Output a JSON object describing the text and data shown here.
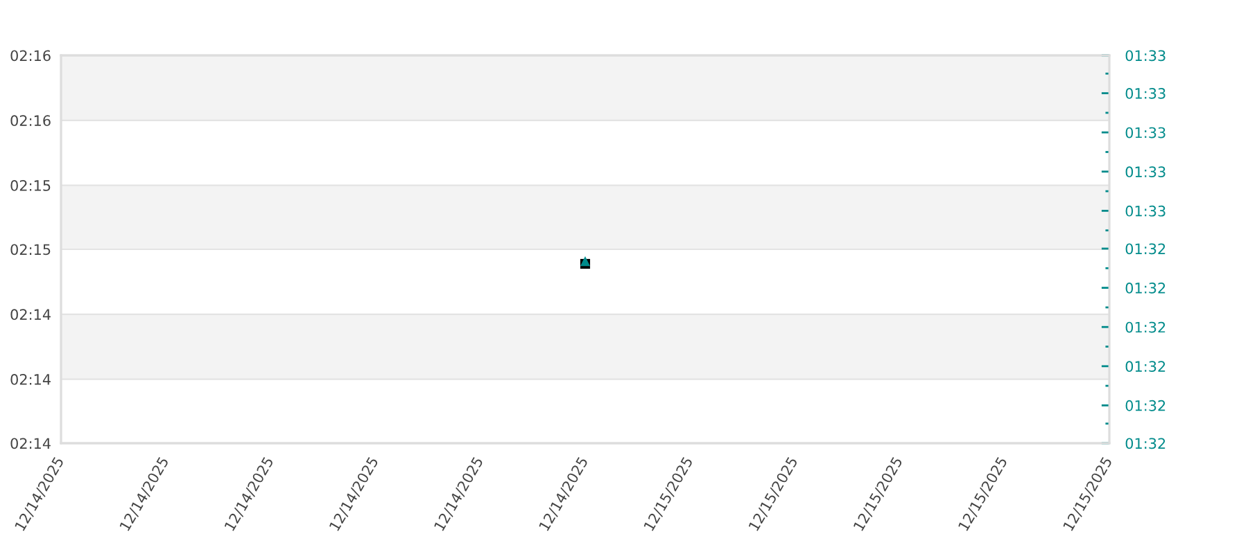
{
  "chart_data": {
    "type": "scatter",
    "x": [
      "2025-12-14T22:00"
    ],
    "series": [
      {
        "color": "#000000",
        "values": [
          2.2452
        ],
        "marker": "square"
      },
      {
        "color": "#008b8b",
        "values": [
          1.5397
        ],
        "marker": "triangle",
        "axis": "y2"
      }
    ],
    "xlim": [
      "2025-12-14T12:00",
      "2025-12-15T08:00"
    ],
    "xticks": [
      {
        "value": "2025-12-14T12:00",
        "label": "12/14/2025"
      },
      {
        "value": "2025-12-14T14:00",
        "label": "12/14/2025"
      },
      {
        "value": "2025-12-14T16:00",
        "label": "12/14/2025"
      },
      {
        "value": "2025-12-14T18:00",
        "label": "12/14/2025"
      },
      {
        "value": "2025-12-14T20:00",
        "label": "12/14/2025"
      },
      {
        "value": "2025-12-14T22:00",
        "label": "12/14/2025"
      },
      {
        "value": "2025-12-15T00:00",
        "label": "12/15/2025"
      },
      {
        "value": "2025-12-15T02:00",
        "label": "12/15/2025"
      },
      {
        "value": "2025-12-15T04:00",
        "label": "12/15/2025"
      },
      {
        "value": "2025-12-15T06:00",
        "label": "12/15/2025"
      },
      {
        "value": "2025-12-15T08:00",
        "label": "12/15/2025"
      }
    ],
    "ylim": [
      2.2267,
      2.2667
    ],
    "yticks": [
      {
        "value": 2.2267,
        "label": "02:14"
      },
      {
        "value": 2.2333,
        "label": "02:14"
      },
      {
        "value": 2.24,
        "label": "02:14"
      },
      {
        "value": 2.2467,
        "label": "02:15"
      },
      {
        "value": 2.2533,
        "label": "02:15"
      },
      {
        "value": 2.26,
        "label": "02:16"
      },
      {
        "value": 2.2667,
        "label": "02:16"
      }
    ],
    "y2lim": [
      1.5267,
      1.5544
    ],
    "y2ticks": [
      {
        "value": 1.5267,
        "label": "01:32"
      },
      {
        "value": 1.5281,
        "label": null
      },
      {
        "value": 1.5294,
        "label": "01:32"
      },
      {
        "value": 1.5308,
        "label": null
      },
      {
        "value": 1.5322,
        "label": "01:32"
      },
      {
        "value": 1.5336,
        "label": null
      },
      {
        "value": 1.535,
        "label": "01:32"
      },
      {
        "value": 1.5364,
        "label": null
      },
      {
        "value": 1.5378,
        "label": "01:32"
      },
      {
        "value": 1.5392,
        "label": null
      },
      {
        "value": 1.5406,
        "label": "01:32"
      },
      {
        "value": 1.5419,
        "label": null
      },
      {
        "value": 1.5433,
        "label": "01:33"
      },
      {
        "value": 1.5447,
        "label": null
      },
      {
        "value": 1.5461,
        "label": "01:33"
      },
      {
        "value": 1.5475,
        "label": null
      },
      {
        "value": 1.5489,
        "label": "01:33"
      },
      {
        "value": 1.5503,
        "label": null
      },
      {
        "value": 1.5517,
        "label": "01:33"
      },
      {
        "value": 1.5531,
        "label": null
      },
      {
        "value": 1.5544,
        "label": "01:33"
      }
    ],
    "grid": "y",
    "bands": [
      {
        "axis": "y",
        "from": 2.26,
        "to": 2.2667,
        "color": "#f3f3f3"
      },
      {
        "axis": "y",
        "from": 2.2467,
        "to": 2.2533,
        "color": "#f3f3f3"
      },
      {
        "axis": "y",
        "from": 2.2333,
        "to": 2.24,
        "color": "#f3f3f3"
      }
    ]
  }
}
